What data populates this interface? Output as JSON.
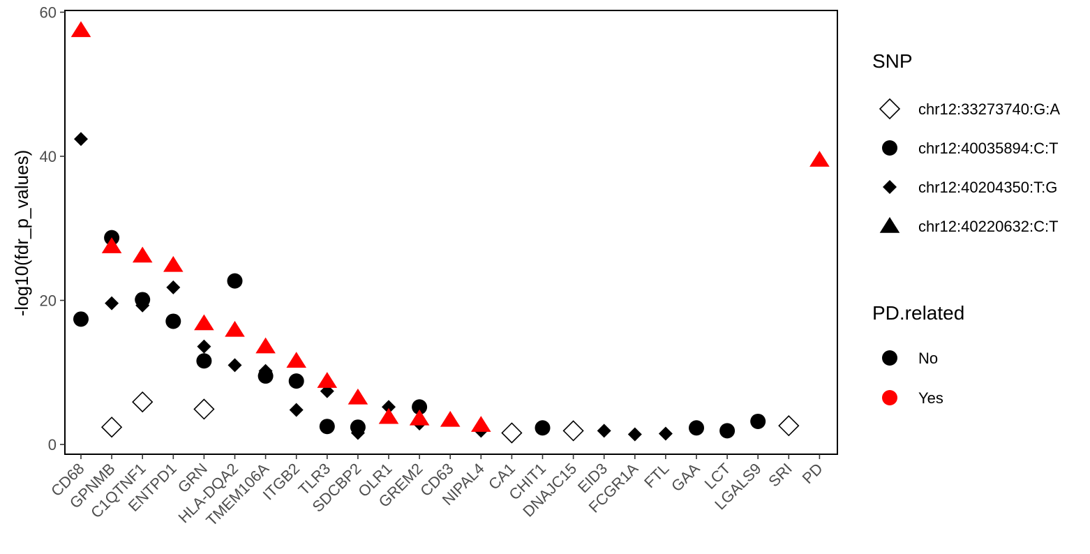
{
  "chart_data": {
    "type": "scatter",
    "title": "",
    "xlabel": "",
    "ylabel": "-log10(fdr_p_values)",
    "ylim": [
      -2,
      60
    ],
    "yticks": [
      0,
      20,
      40,
      60
    ],
    "grid": false,
    "legend_position": "right",
    "categories": [
      "CD68",
      "GPNMB",
      "C1QTNF1",
      "ENTPD1",
      "GRN",
      "HLA-DQA2",
      "TMEM106A",
      "ITGB2",
      "TLR3",
      "SDCBP2",
      "OLR1",
      "GREM2",
      "CD63",
      "NIPAL4",
      "CA1",
      "CHIT1",
      "DNAJC15",
      "EID3",
      "FCGR1A",
      "FTL",
      "GAA",
      "LCT",
      "LGALS9",
      "SRI",
      "PD"
    ],
    "snp_legend": {
      "title": "SNP",
      "entries": [
        {
          "label": "chr12:33273740:G:A",
          "shape": "open-diamond"
        },
        {
          "label": "chr12:40035894:C:T",
          "shape": "circle"
        },
        {
          "label": "chr12:40204350:T:G",
          "shape": "diamond"
        },
        {
          "label": "chr12:40220632:C:T",
          "shape": "triangle"
        }
      ]
    },
    "pd_legend": {
      "title": "PD.related",
      "entries": [
        {
          "label": "No",
          "color": "#000000"
        },
        {
          "label": "Yes",
          "color": "#ff0000"
        }
      ]
    },
    "series": [
      {
        "snp": "chr12:33273740:G:A",
        "shape": "open-diamond",
        "points": [
          {
            "x": "GPNMB",
            "y": 2.4,
            "pd": "No"
          },
          {
            "x": "C1QTNF1",
            "y": 5.9,
            "pd": "No"
          },
          {
            "x": "GRN",
            "y": 4.9,
            "pd": "No"
          },
          {
            "x": "CA1",
            "y": 1.6,
            "pd": "No"
          },
          {
            "x": "DNAJC15",
            "y": 1.9,
            "pd": "No"
          },
          {
            "x": "SRI",
            "y": 2.6,
            "pd": "No"
          }
        ]
      },
      {
        "snp": "chr12:40035894:C:T",
        "shape": "circle",
        "points": [
          {
            "x": "CD68",
            "y": 17.4,
            "pd": "No"
          },
          {
            "x": "GPNMB",
            "y": 28.7,
            "pd": "No"
          },
          {
            "x": "C1QTNF1",
            "y": 20.1,
            "pd": "No"
          },
          {
            "x": "ENTPD1",
            "y": 17.1,
            "pd": "No"
          },
          {
            "x": "GRN",
            "y": 11.6,
            "pd": "No"
          },
          {
            "x": "HLA-DQA2",
            "y": 22.7,
            "pd": "No"
          },
          {
            "x": "TMEM106A",
            "y": 9.5,
            "pd": "No"
          },
          {
            "x": "ITGB2",
            "y": 8.8,
            "pd": "No"
          },
          {
            "x": "TLR3",
            "y": 2.5,
            "pd": "No"
          },
          {
            "x": "SDCBP2",
            "y": 2.4,
            "pd": "No"
          },
          {
            "x": "GREM2",
            "y": 5.2,
            "pd": "No"
          },
          {
            "x": "CHIT1",
            "y": 2.3,
            "pd": "No"
          },
          {
            "x": "GAA",
            "y": 2.3,
            "pd": "No"
          },
          {
            "x": "LCT",
            "y": 1.9,
            "pd": "No"
          },
          {
            "x": "LGALS9",
            "y": 3.2,
            "pd": "No"
          }
        ]
      },
      {
        "snp": "chr12:40204350:T:G",
        "shape": "diamond",
        "points": [
          {
            "x": "CD68",
            "y": 42.4,
            "pd": "No"
          },
          {
            "x": "GPNMB",
            "y": 19.6,
            "pd": "No"
          },
          {
            "x": "C1QTNF1",
            "y": 19.3,
            "pd": "No"
          },
          {
            "x": "ENTPD1",
            "y": 21.8,
            "pd": "No"
          },
          {
            "x": "GRN",
            "y": 13.6,
            "pd": "No"
          },
          {
            "x": "HLA-DQA2",
            "y": 11.0,
            "pd": "No"
          },
          {
            "x": "TMEM106A",
            "y": 10.2,
            "pd": "No"
          },
          {
            "x": "ITGB2",
            "y": 4.8,
            "pd": "No"
          },
          {
            "x": "TLR3",
            "y": 7.4,
            "pd": "No"
          },
          {
            "x": "SDCBP2",
            "y": 1.6,
            "pd": "No"
          },
          {
            "x": "OLR1",
            "y": 5.2,
            "pd": "No"
          },
          {
            "x": "GREM2",
            "y": 2.9,
            "pd": "No"
          },
          {
            "x": "NIPAL4",
            "y": 1.9,
            "pd": "No"
          },
          {
            "x": "EID3",
            "y": 1.9,
            "pd": "No"
          },
          {
            "x": "FCGR1A",
            "y": 1.4,
            "pd": "No"
          },
          {
            "x": "FTL",
            "y": 1.5,
            "pd": "No"
          }
        ]
      },
      {
        "snp": "chr12:40220632:C:T",
        "shape": "triangle",
        "points": [
          {
            "x": "CD68",
            "y": 57.5,
            "pd": "Yes"
          },
          {
            "x": "GPNMB",
            "y": 27.5,
            "pd": "Yes"
          },
          {
            "x": "C1QTNF1",
            "y": 26.2,
            "pd": "Yes"
          },
          {
            "x": "ENTPD1",
            "y": 24.9,
            "pd": "Yes"
          },
          {
            "x": "GRN",
            "y": 16.8,
            "pd": "Yes"
          },
          {
            "x": "HLA-DQA2",
            "y": 15.9,
            "pd": "Yes"
          },
          {
            "x": "TMEM106A",
            "y": 13.6,
            "pd": "Yes"
          },
          {
            "x": "ITGB2",
            "y": 11.6,
            "pd": "Yes"
          },
          {
            "x": "TLR3",
            "y": 8.8,
            "pd": "Yes"
          },
          {
            "x": "SDCBP2",
            "y": 6.5,
            "pd": "Yes"
          },
          {
            "x": "OLR1",
            "y": 3.8,
            "pd": "Yes"
          },
          {
            "x": "GREM2",
            "y": 3.6,
            "pd": "Yes"
          },
          {
            "x": "CD63",
            "y": 3.4,
            "pd": "Yes"
          },
          {
            "x": "NIPAL4",
            "y": 2.7,
            "pd": "Yes"
          },
          {
            "x": "PD",
            "y": 39.5,
            "pd": "Yes"
          }
        ]
      }
    ]
  }
}
